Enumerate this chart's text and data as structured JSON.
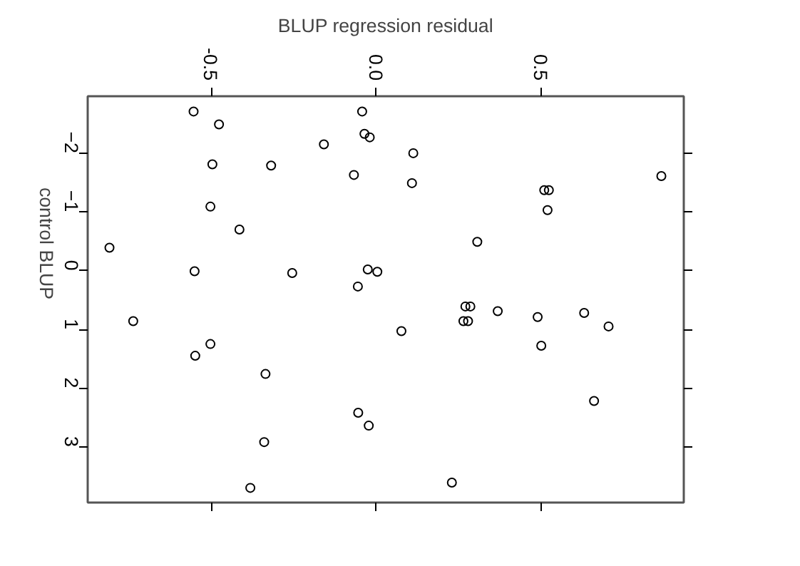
{
  "chart_data": {
    "type": "scatter",
    "xlabel": "BLUP regression residual",
    "ylabel": "control BLUP",
    "marker": "circle",
    "grid": false,
    "xlim": [
      -0.875,
      0.932
    ],
    "ylim": [
      3.95,
      -2.97
    ],
    "xticks": [
      {
        "value": -0.5,
        "label": "-0.5"
      },
      {
        "value": 0,
        "label": "0.0"
      },
      {
        "value": 0.5,
        "label": "0.5"
      }
    ],
    "yticks": [
      -2,
      -1,
      0,
      1,
      2,
      3
    ],
    "series": [
      {
        "color": "#000000",
        "x": [
          -0.554,
          -0.477,
          -0.043,
          -0.036,
          -0.02,
          -0.159,
          -0.497,
          -0.319,
          -0.068,
          -0.503,
          -0.415,
          -0.809,
          -0.551,
          -0.255,
          -0.026,
          0.003,
          -0.056,
          -0.737,
          -0.503,
          -0.549,
          -0.336,
          -0.055,
          -0.023,
          -0.34,
          -0.382,
          0.112,
          0.108,
          0.509,
          0.523,
          0.519,
          0.864,
          0.306,
          0.27,
          0.285,
          0.264,
          0.278,
          0.368,
          0.489,
          0.63,
          0.704,
          0.5,
          0.076,
          0.66,
          0.229
        ],
        "values": [
          -2.71,
          -2.49,
          -2.71,
          -2.33,
          -2.27,
          -2.15,
          -1.81,
          -1.79,
          -1.63,
          -1.09,
          -0.7,
          -0.39,
          0.01,
          0.04,
          -0.02,
          0.02,
          0.27,
          0.86,
          1.25,
          1.45,
          1.76,
          2.42,
          2.64,
          2.92,
          3.7,
          -2.0,
          -1.49,
          -1.37,
          -1.37,
          -1.03,
          -1.61,
          -0.49,
          0.61,
          0.61,
          0.86,
          0.86,
          0.69,
          0.79,
          0.72,
          0.95,
          1.28,
          1.03,
          2.22,
          3.61
        ]
      }
    ]
  }
}
